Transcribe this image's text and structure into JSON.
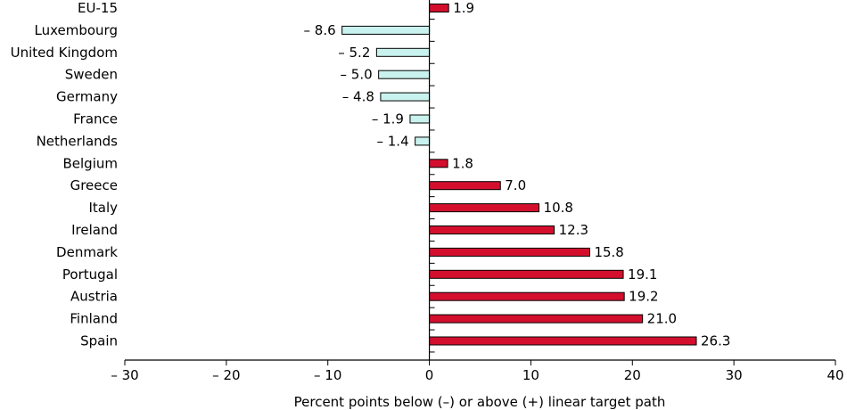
{
  "chart_data": {
    "type": "bar",
    "orientation": "horizontal",
    "categories": [
      "EU-15",
      "Luxembourg",
      "United Kingdom",
      "Sweden",
      "Germany",
      "France",
      "Netherlands",
      "Belgium",
      "Greece",
      "Italy",
      "Ireland",
      "Denmark",
      "Portugal",
      "Austria",
      "Finland",
      "Spain"
    ],
    "values": [
      1.9,
      -8.6,
      -5.2,
      -5.0,
      -4.8,
      -1.9,
      -1.4,
      1.8,
      7.0,
      10.8,
      12.3,
      15.8,
      19.1,
      19.2,
      21.0,
      26.3
    ],
    "value_labels": [
      "1.9",
      "– 8.6",
      "– 5.2",
      "– 5.0",
      "– 4.8",
      "– 1.9",
      "– 1.4",
      "1.8",
      "7.0",
      "10.8",
      "12.3",
      "15.8",
      "19.1",
      "19.2",
      "21.0",
      "26.3"
    ],
    "xlim": [
      -30,
      40
    ],
    "xticks": [
      -30,
      -20,
      -10,
      0,
      10,
      20,
      30,
      40
    ],
    "xtick_labels": [
      "– 30",
      "– 20",
      "– 10",
      "0",
      "10",
      "20",
      "30",
      "40"
    ],
    "xlabel": "Percent points below (–) or above (+) linear target path",
    "title": "",
    "grid": false,
    "legend": "none",
    "colors": {
      "positive_fill": "#d40f2e",
      "negative_fill": "#c9f2ee",
      "bar_stroke": "#000000",
      "axis": "#000000"
    }
  }
}
